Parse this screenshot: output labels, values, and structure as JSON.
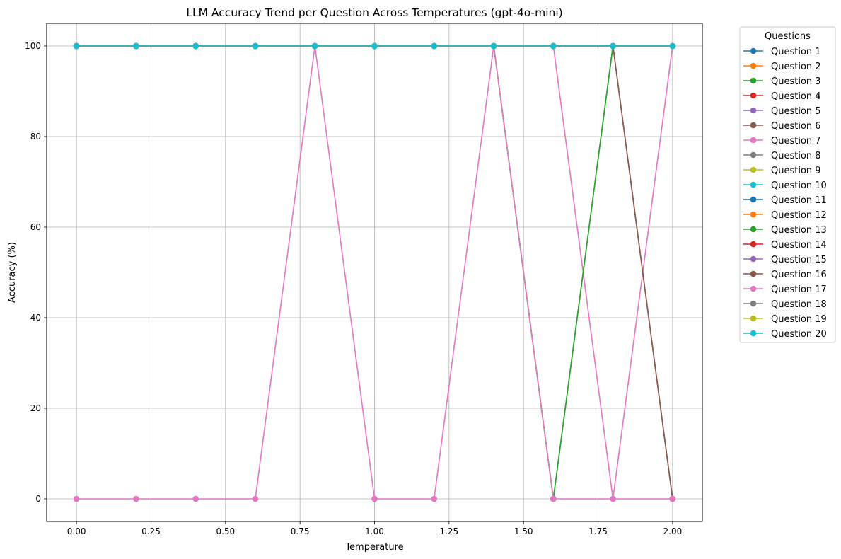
{
  "chart_data": {
    "type": "line",
    "title": "LLM Accuracy Trend per Question Across Temperatures (gpt-4o-mini)",
    "xlabel": "Temperature",
    "ylabel": "Accuracy (%)",
    "xlim": [
      -0.1,
      2.1
    ],
    "ylim": [
      -5,
      105
    ],
    "xticks": [
      0.0,
      0.25,
      0.5,
      0.75,
      1.0,
      1.25,
      1.5,
      1.75,
      2.0
    ],
    "xtick_labels": [
      "0.00",
      "0.25",
      "0.50",
      "0.75",
      "1.00",
      "1.25",
      "1.50",
      "1.75",
      "2.00"
    ],
    "yticks": [
      0,
      20,
      40,
      60,
      80,
      100
    ],
    "ytick_labels": [
      "0",
      "20",
      "40",
      "60",
      "80",
      "100"
    ],
    "grid": true,
    "legend_title": "Questions",
    "legend_position": "outside-right-top",
    "x": [
      0.0,
      0.2,
      0.4,
      0.6,
      0.8,
      1.0,
      1.2,
      1.4,
      1.6,
      1.8,
      2.0
    ],
    "series": [
      {
        "name": "Question 1",
        "color": "#1f77b4",
        "values": [
          100,
          100,
          100,
          100,
          100,
          100,
          100,
          100,
          100,
          100,
          100
        ]
      },
      {
        "name": "Question 2",
        "color": "#ff7f0e",
        "values": [
          100,
          100,
          100,
          100,
          100,
          100,
          100,
          100,
          100,
          100,
          100
        ]
      },
      {
        "name": "Question 3",
        "color": "#2ca02c",
        "values": [
          100,
          100,
          100,
          100,
          100,
          100,
          100,
          100,
          0,
          100,
          100
        ]
      },
      {
        "name": "Question 4",
        "color": "#d62728",
        "values": [
          100,
          100,
          100,
          100,
          100,
          100,
          100,
          100,
          100,
          100,
          100
        ]
      },
      {
        "name": "Question 5",
        "color": "#9467bd",
        "values": [
          100,
          100,
          100,
          100,
          100,
          100,
          100,
          100,
          100,
          100,
          100
        ]
      },
      {
        "name": "Question 6",
        "color": "#8c564b",
        "values": [
          100,
          100,
          100,
          100,
          100,
          100,
          100,
          100,
          100,
          100,
          0
        ]
      },
      {
        "name": "Question 7",
        "color": "#e377c2",
        "values": [
          100,
          100,
          100,
          100,
          100,
          100,
          100,
          100,
          100,
          0,
          100
        ]
      },
      {
        "name": "Question 8",
        "color": "#7f7f7f",
        "values": [
          100,
          100,
          100,
          100,
          100,
          100,
          100,
          100,
          100,
          100,
          100
        ]
      },
      {
        "name": "Question 9",
        "color": "#bcbd22",
        "values": [
          100,
          100,
          100,
          100,
          100,
          100,
          100,
          100,
          100,
          100,
          100
        ]
      },
      {
        "name": "Question 10",
        "color": "#17becf",
        "values": [
          100,
          100,
          100,
          100,
          100,
          100,
          100,
          100,
          100,
          100,
          100
        ]
      },
      {
        "name": "Question 11",
        "color": "#1f77b4",
        "values": [
          100,
          100,
          100,
          100,
          100,
          100,
          100,
          100,
          100,
          100,
          100
        ]
      },
      {
        "name": "Question 12",
        "color": "#ff7f0e",
        "values": [
          100,
          100,
          100,
          100,
          100,
          100,
          100,
          100,
          100,
          100,
          100
        ]
      },
      {
        "name": "Question 13",
        "color": "#2ca02c",
        "values": [
          100,
          100,
          100,
          100,
          100,
          100,
          100,
          100,
          0,
          100,
          100
        ]
      },
      {
        "name": "Question 14",
        "color": "#d62728",
        "values": [
          100,
          100,
          100,
          100,
          100,
          100,
          100,
          100,
          100,
          100,
          100
        ]
      },
      {
        "name": "Question 15",
        "color": "#9467bd",
        "values": [
          100,
          100,
          100,
          100,
          100,
          100,
          100,
          100,
          100,
          100,
          100
        ]
      },
      {
        "name": "Question 16",
        "color": "#8c564b",
        "values": [
          100,
          100,
          100,
          100,
          100,
          100,
          100,
          100,
          100,
          100,
          0
        ]
      },
      {
        "name": "Question 17",
        "color": "#e377c2",
        "values": [
          0,
          0,
          0,
          0,
          100,
          0,
          0,
          100,
          0,
          0,
          0
        ]
      },
      {
        "name": "Question 18",
        "color": "#7f7f7f",
        "values": [
          100,
          100,
          100,
          100,
          100,
          100,
          100,
          100,
          100,
          100,
          100
        ]
      },
      {
        "name": "Question 19",
        "color": "#bcbd22",
        "values": [
          100,
          100,
          100,
          100,
          100,
          100,
          100,
          100,
          100,
          100,
          100
        ]
      },
      {
        "name": "Question 20",
        "color": "#17becf",
        "values": [
          100,
          100,
          100,
          100,
          100,
          100,
          100,
          100,
          100,
          100,
          100
        ]
      }
    ]
  }
}
